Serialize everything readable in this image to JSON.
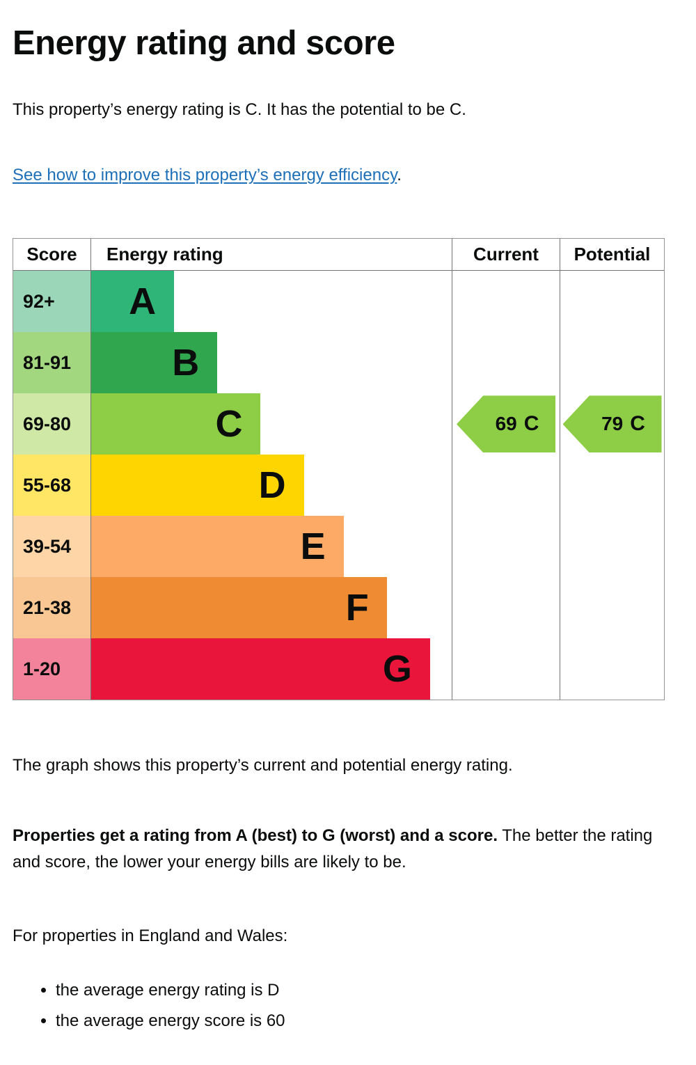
{
  "page": {
    "heading": "Energy rating and score",
    "intro": "This property’s energy rating is C. It has the potential to be C.",
    "improve_link": "See how to improve this property’s energy efficiency",
    "improve_suffix": ".",
    "graph_caption": "The graph shows this property’s current and potential energy rating.",
    "explain_bold": "Properties get a rating from A (best) to G (worst) and a score.",
    "explain_rest": "The better the rating and score, the lower your energy bills are likely to be.",
    "region_heading": "For properties in England and Wales:",
    "bullets": [
      "the average energy rating is D",
      "the average energy score is 60"
    ],
    "link_color": "#1d70b8"
  },
  "chart_data": {
    "type": "bar",
    "title": "Energy rating and score",
    "columns": [
      "Score",
      "Energy rating",
      "Current",
      "Potential"
    ],
    "bands": [
      {
        "range": "92+",
        "letter": "A",
        "bar_color": "#2eb577",
        "tint_color": "#9cd6b8",
        "width_pct": 23
      },
      {
        "range": "81-91",
        "letter": "B",
        "bar_color": "#30a74e",
        "tint_color": "#a2d77f",
        "width_pct": 35
      },
      {
        "range": "69-80",
        "letter": "C",
        "bar_color": "#8dce46",
        "tint_color": "#cfe8a5",
        "width_pct": 47
      },
      {
        "range": "55-68",
        "letter": "D",
        "bar_color": "#ffd500",
        "tint_color": "#ffe664",
        "width_pct": 59
      },
      {
        "range": "39-54",
        "letter": "E",
        "bar_color": "#fcaa65",
        "tint_color": "#fdd5a7",
        "width_pct": 70
      },
      {
        "range": "21-38",
        "letter": "F",
        "bar_color": "#ef8b33",
        "tint_color": "#f9c793",
        "width_pct": 82
      },
      {
        "range": "1-20",
        "letter": "G",
        "bar_color": "#e9153b",
        "tint_color": "#f2839b",
        "width_pct": 94
      }
    ],
    "current": {
      "value": "69",
      "letter": "C",
      "arrow_color": "#8dce46"
    },
    "potential": {
      "value": "79",
      "letter": "C",
      "arrow_color": "#8dce46"
    }
  }
}
